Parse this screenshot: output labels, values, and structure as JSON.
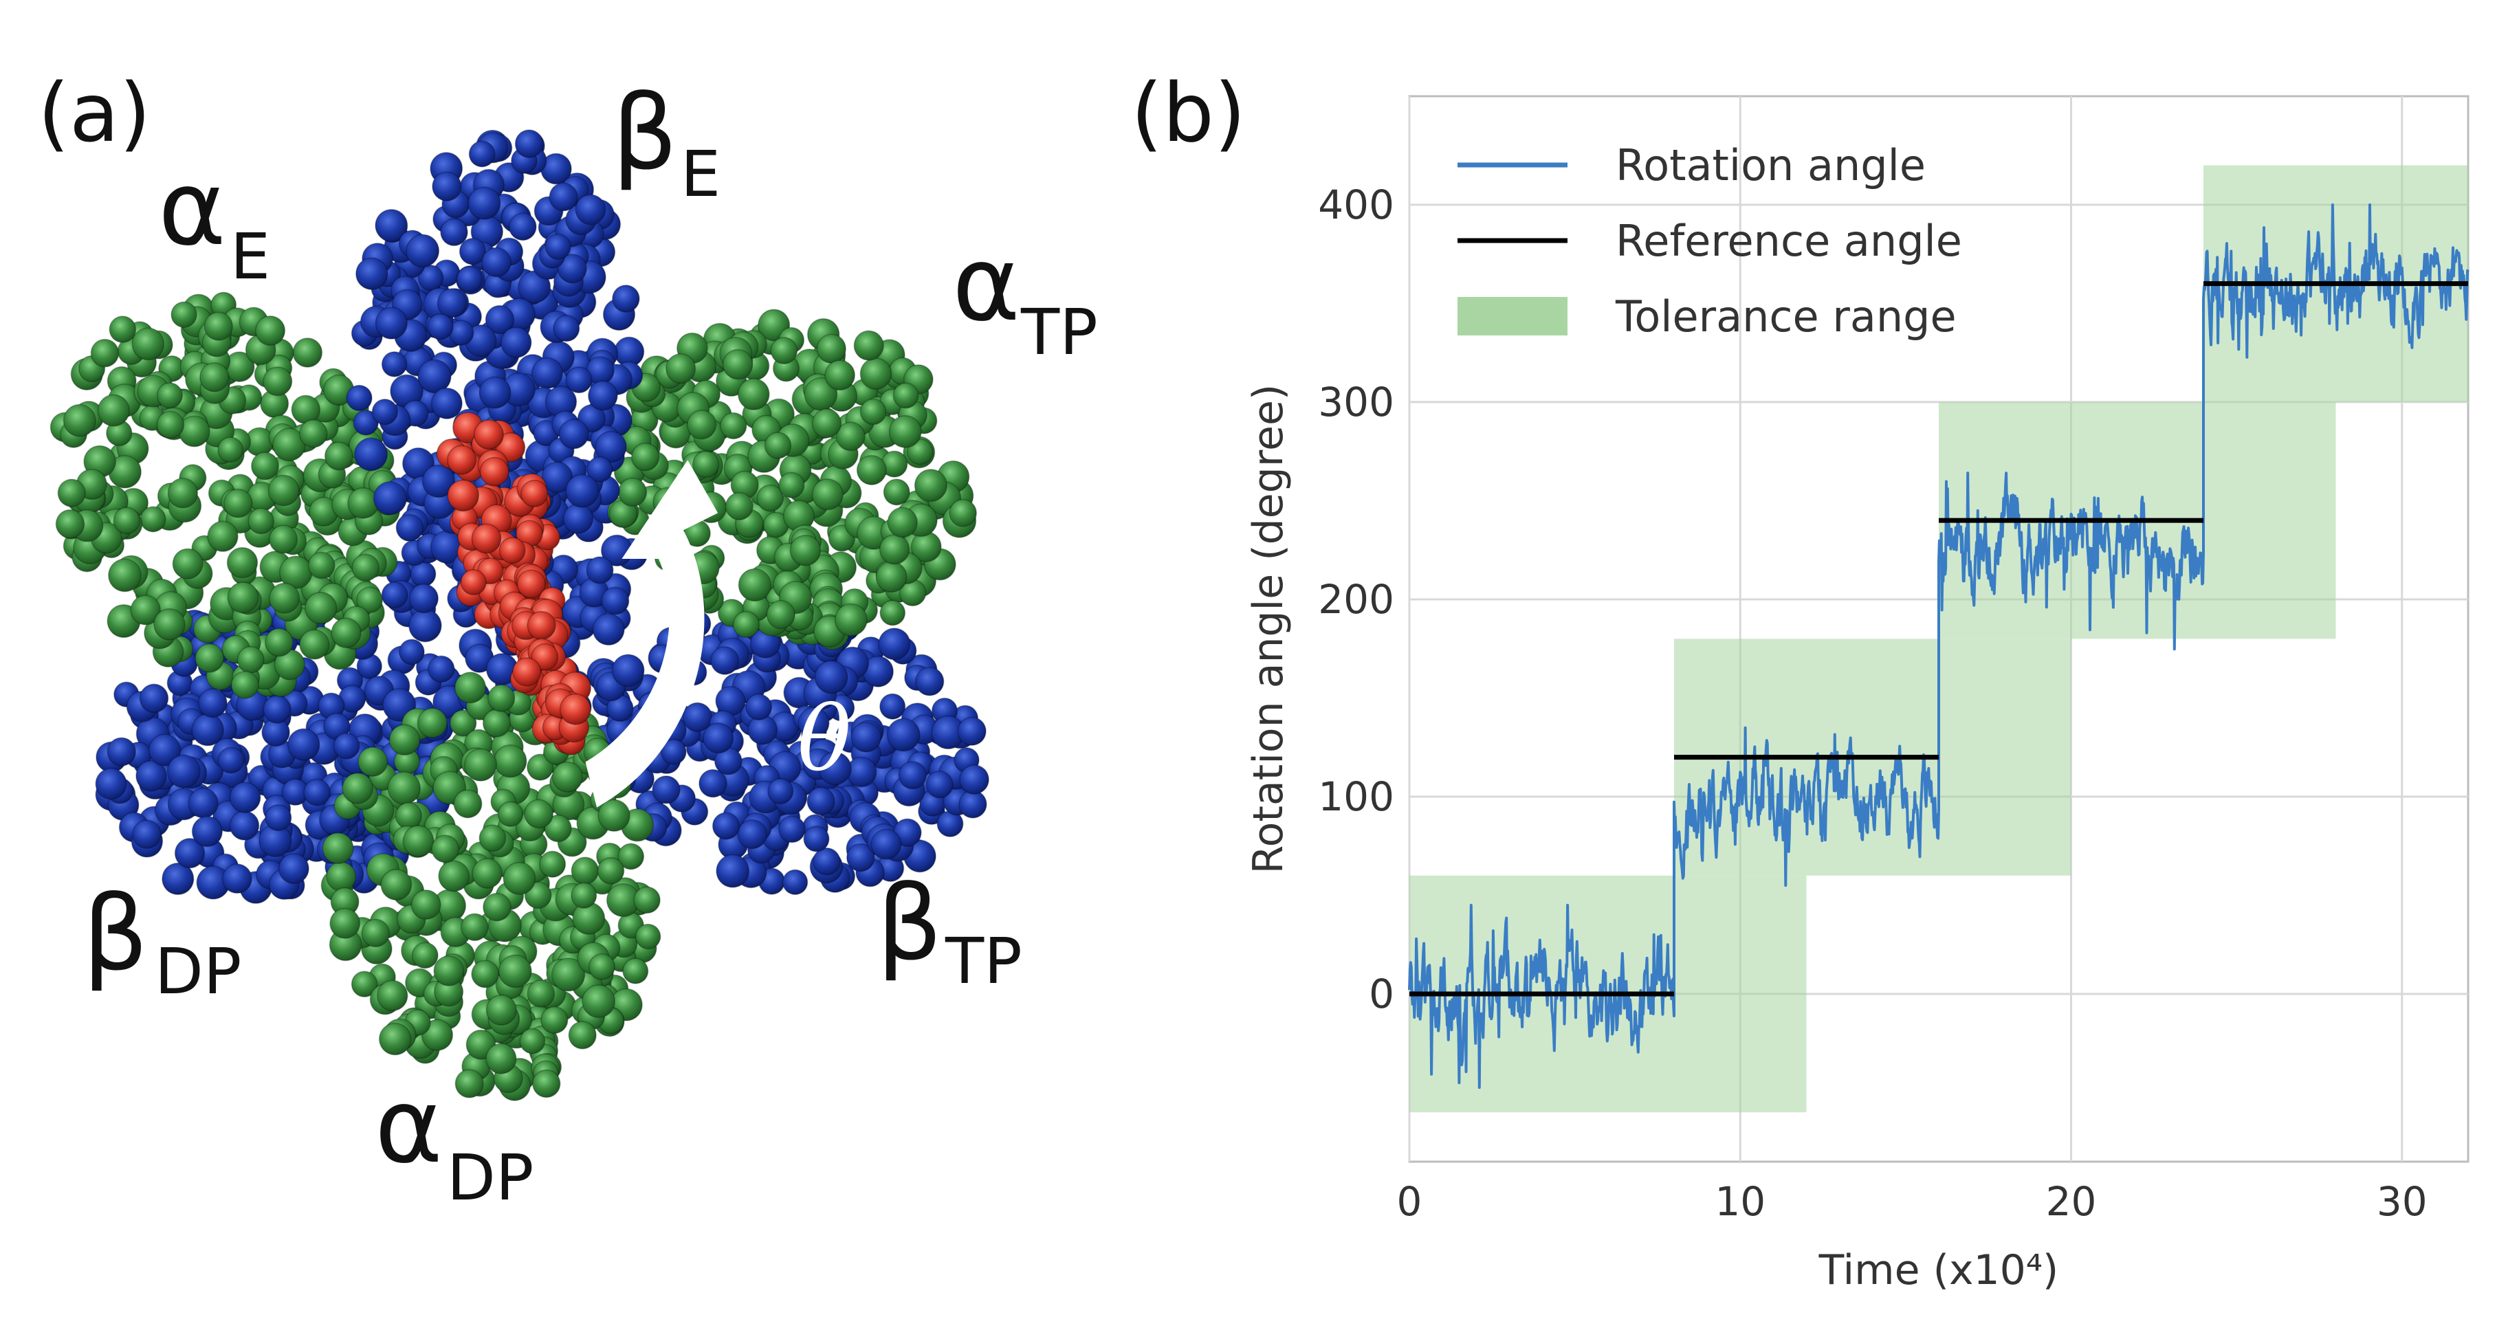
{
  "panel_a": {
    "label": "(a)",
    "subunits": [
      {
        "main": "α",
        "sub": "E"
      },
      {
        "main": "β",
        "sub": "E"
      },
      {
        "main": "α",
        "sub": "TP"
      },
      {
        "main": "β",
        "sub": "TP"
      },
      {
        "main": "α",
        "sub": "DP"
      },
      {
        "main": "β",
        "sub": "DP"
      }
    ],
    "theta": "θ",
    "colors": {
      "alpha": "#3a8a3e",
      "beta": "#1d3aa8",
      "gamma": "#d83a2c",
      "arrow": "#ffffff"
    }
  },
  "panel_b": {
    "label": "(b)"
  },
  "chart_data": {
    "type": "line",
    "xlabel": "Time (x10⁴)",
    "ylabel": "Rotation angle (degree)",
    "xlim": [
      0,
      32
    ],
    "ylim": [
      -85,
      455
    ],
    "xticks": [
      0,
      10,
      20,
      30
    ],
    "yticks": [
      0,
      100,
      200,
      300,
      400
    ],
    "grid": true,
    "legend_position": "top-left",
    "legend": [
      {
        "label": "Rotation angle",
        "kind": "line",
        "color": "#3a7dc4"
      },
      {
        "label": "Reference angle",
        "kind": "line",
        "color": "#000000"
      },
      {
        "label": "Tolerance range",
        "kind": "patch",
        "color": "#a8d5a2"
      }
    ],
    "series": [
      {
        "name": "Reference angle",
        "color": "#000000",
        "segments": [
          {
            "x": [
              0,
              8
            ],
            "y": 0
          },
          {
            "x": [
              8,
              16
            ],
            "y": 120
          },
          {
            "x": [
              16,
              24
            ],
            "y": 240
          },
          {
            "x": [
              24,
              32
            ],
            "y": 360
          }
        ]
      },
      {
        "name": "Tolerance range",
        "color": "#a8d5a2",
        "bands": [
          {
            "x": [
              0,
              12
            ],
            "y": [
              -60,
              60
            ]
          },
          {
            "x": [
              8,
              20
            ],
            "y": [
              60,
              180
            ]
          },
          {
            "x": [
              16,
              28
            ],
            "y": [
              180,
              300
            ]
          },
          {
            "x": [
              24,
              32
            ],
            "y": [
              300,
              420
            ]
          }
        ]
      },
      {
        "name": "Rotation angle",
        "color": "#3a7dc4",
        "steps": [
          {
            "x": [
              0,
              8
            ],
            "mean": 0,
            "min": -65,
            "max": 45
          },
          {
            "x": [
              8,
              16
            ],
            "mean": 100,
            "min": 48,
            "max": 155
          },
          {
            "x": [
              16,
              24
            ],
            "mean": 230,
            "min": 162,
            "max": 290
          },
          {
            "x": [
              24,
              32
            ],
            "mean": 360,
            "min": 297,
            "max": 400
          }
        ]
      }
    ]
  }
}
